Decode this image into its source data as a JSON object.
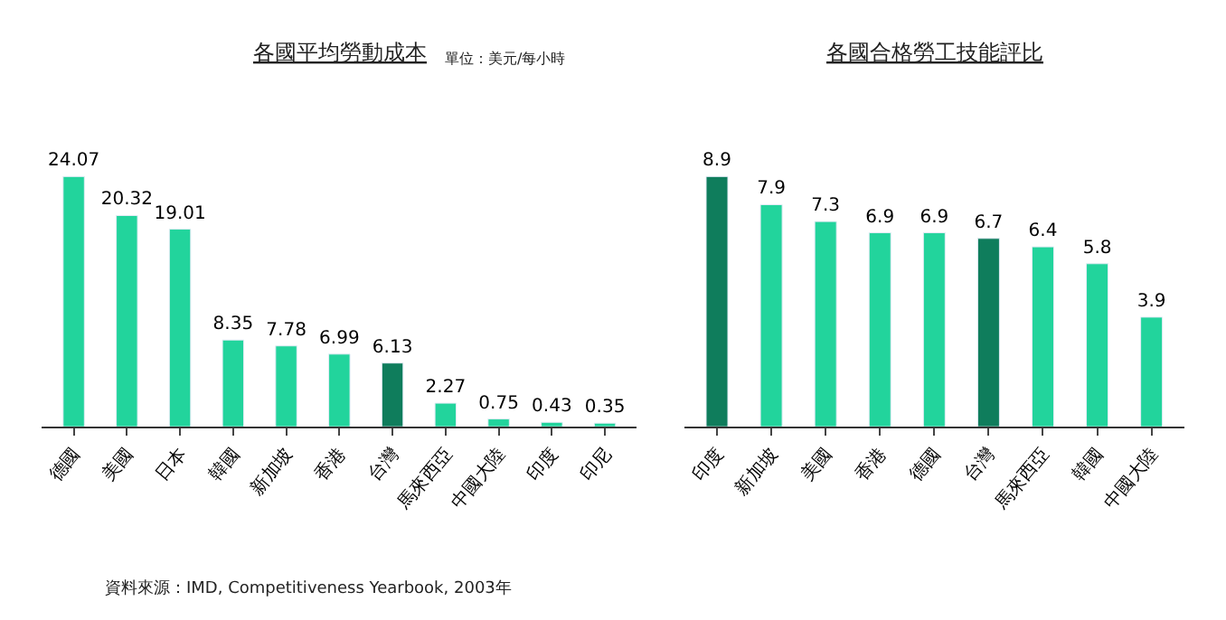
{
  "chart_data": [
    {
      "type": "bar",
      "title": "各國平均勞動成本",
      "subtitle": "單位：美元/每小時",
      "categories": [
        "德國",
        "美國",
        "日本",
        "韓國",
        "新加坡",
        "香港",
        "台灣",
        "馬來西亞",
        "中國大陸",
        "印度",
        "印尼"
      ],
      "values": [
        24.07,
        20.32,
        19.01,
        8.35,
        7.78,
        6.99,
        6.13,
        2.27,
        0.75,
        0.43,
        0.35
      ],
      "colors": [
        "#22d49c",
        "#22d49c",
        "#22d49c",
        "#22d49c",
        "#22d49c",
        "#22d49c",
        "#0f7d5c",
        "#22d49c",
        "#22d49c",
        "#22d49c",
        "#22d49c"
      ],
      "data_labels": true,
      "annotations": [
        "資料來源：IMD, Competitiveness Yearbook, 2003年"
      ]
    },
    {
      "type": "bar",
      "title": "各國合格勞工技能評比",
      "categories": [
        "印度",
        "新加坡",
        "美國",
        "香港",
        "德國",
        "台灣",
        "馬來西亞",
        "韓國",
        "中國大陸"
      ],
      "values": [
        8.9,
        7.9,
        7.3,
        6.9,
        6.9,
        6.7,
        6.4,
        5.8,
        3.9
      ],
      "colors": [
        "#0f7d5c",
        "#22d49c",
        "#22d49c",
        "#22d49c",
        "#22d49c",
        "#0f7d5c",
        "#22d49c",
        "#22d49c",
        "#22d49c"
      ],
      "data_labels": true
    }
  ]
}
